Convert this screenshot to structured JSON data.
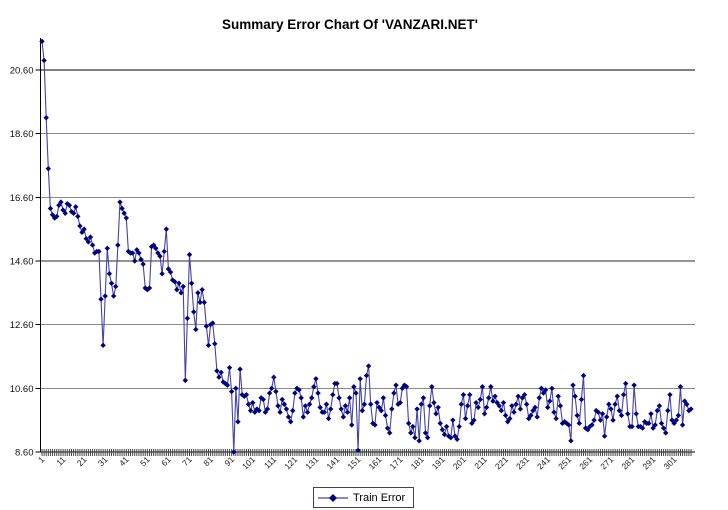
{
  "chart": {
    "title": "Summary Error Chart Of 'VANZARI.NET'",
    "legend": {
      "train_error": "Train Error"
    }
  },
  "chart_data": {
    "type": "line",
    "title": "Summary Error Chart Of 'VANZARI.NET'",
    "xlabel": "",
    "ylabel": "",
    "x_start": 1,
    "x_tick_interval": 10,
    "x_tick_labels": [
      "1",
      "11",
      "21",
      "31",
      "41",
      "51",
      "61",
      "71",
      "81",
      "91",
      "101",
      "111",
      "121",
      "131",
      "141",
      "151",
      "161",
      "171",
      "181",
      "191",
      "201",
      "211",
      "221",
      "231",
      "241",
      "251",
      "261",
      "271",
      "281",
      "291",
      "301"
    ],
    "x_tick_rotation_deg": 45,
    "y_ticks": [
      {
        "label": "8.60",
        "value": 8.6,
        "line_color": "#000000"
      },
      {
        "label": "10.60",
        "value": 10.6,
        "line_color": "#8a8a8a"
      },
      {
        "label": "12.60",
        "value": 12.6,
        "line_color": "#8a8a8a"
      },
      {
        "label": "14.60",
        "value": 14.6,
        "line_color": "#2b2b2b"
      },
      {
        "label": "16.60",
        "value": 16.6,
        "line_color": "#8a8a8a"
      },
      {
        "label": "18.60",
        "value": 18.6,
        "line_color": "#8a8a8a"
      },
      {
        "label": "20.60",
        "value": 20.6,
        "line_color": "#000000"
      }
    ],
    "ylim": [
      8.6,
      21.55
    ],
    "grid": true,
    "legend_position": "bottom-center",
    "background": "#ffffff",
    "axis_color": "#000000",
    "tick_color": "#444444",
    "series": [
      {
        "name": "Train Error",
        "marker": "diamond",
        "marker_color": "#000080",
        "line_color": "#4343a8",
        "values": [
          21.5,
          20.9,
          19.1,
          17.5,
          16.25,
          16.05,
          15.95,
          16.0,
          16.35,
          16.45,
          16.2,
          16.1,
          16.4,
          16.35,
          16.15,
          16.1,
          16.3,
          16.0,
          15.7,
          15.5,
          15.6,
          15.3,
          15.2,
          15.35,
          15.1,
          14.85,
          14.9,
          14.9,
          13.4,
          11.95,
          13.5,
          15.0,
          14.2,
          13.9,
          13.5,
          13.8,
          15.1,
          16.45,
          16.25,
          16.1,
          15.95,
          14.9,
          14.85,
          14.85,
          14.6,
          14.95,
          14.85,
          14.65,
          14.5,
          13.75,
          13.7,
          13.75,
          15.05,
          15.1,
          15.0,
          14.85,
          14.75,
          14.2,
          14.9,
          15.6,
          14.35,
          14.25,
          14.0,
          13.95,
          13.7,
          13.9,
          13.6,
          13.8,
          10.85,
          12.8,
          14.8,
          13.9,
          13.0,
          12.45,
          13.6,
          13.3,
          13.7,
          13.3,
          12.55,
          11.95,
          12.6,
          12.65,
          12.0,
          11.15,
          10.95,
          11.1,
          10.8,
          10.75,
          10.7,
          11.25,
          10.5,
          8.6,
          10.6,
          9.55,
          11.2,
          10.4,
          10.35,
          10.4,
          10.1,
          9.9,
          10.15,
          9.85,
          9.95,
          9.9,
          10.3,
          10.25,
          9.85,
          9.95,
          10.45,
          10.6,
          10.95,
          10.5,
          10.05,
          9.85,
          10.25,
          10.1,
          9.95,
          9.7,
          9.55,
          9.9,
          10.45,
          10.6,
          10.55,
          10.3,
          9.7,
          10.05,
          9.85,
          10.1,
          10.3,
          10.65,
          10.9,
          10.45,
          10.0,
          9.85,
          9.85,
          10.1,
          9.65,
          9.95,
          10.4,
          10.75,
          10.75,
          10.3,
          9.95,
          9.7,
          10.05,
          9.85,
          10.3,
          9.45,
          10.65,
          10.45,
          8.65,
          10.9,
          9.9,
          10.1,
          11.0,
          11.3,
          10.1,
          9.5,
          9.45,
          10.15,
          10.0,
          9.9,
          10.3,
          9.75,
          9.35,
          9.2,
          9.95,
          10.45,
          10.7,
          10.1,
          10.15,
          10.6,
          10.7,
          10.65,
          9.5,
          9.2,
          9.4,
          9.05,
          9.95,
          8.95,
          10.1,
          10.3,
          9.2,
          9.05,
          10.05,
          10.65,
          10.15,
          9.8,
          10.0,
          9.5,
          9.3,
          9.15,
          9.4,
          9.1,
          9.05,
          9.6,
          9.1,
          9.0,
          9.4,
          10.1,
          10.4,
          9.65,
          10.05,
          10.4,
          9.5,
          9.6,
          10.15,
          10.0,
          10.25,
          10.65,
          9.8,
          10.0,
          10.3,
          10.65,
          10.2,
          10.35,
          10.15,
          10.05,
          9.9,
          10.15,
          9.75,
          9.55,
          9.65,
          10.05,
          9.85,
          10.1,
          10.35,
          9.95,
          10.3,
          10.4,
          10.1,
          9.65,
          9.75,
          9.9,
          10.0,
          9.7,
          10.3,
          10.6,
          10.45,
          10.55,
          10.0,
          10.2,
          10.6,
          9.85,
          9.65,
          10.35,
          10.05,
          9.5,
          9.55,
          9.5,
          9.45,
          8.95,
          10.7,
          10.35,
          9.75,
          9.5,
          10.25,
          11.0,
          9.35,
          9.3,
          9.4,
          9.45,
          9.6,
          9.9,
          9.85,
          9.6,
          9.8,
          9.1,
          9.7,
          10.1,
          9.95,
          9.6,
          10.1,
          10.35,
          9.9,
          9.75,
          10.4,
          10.75,
          9.8,
          9.4,
          9.4,
          10.7,
          9.8,
          9.4,
          9.4,
          9.35,
          9.55,
          9.5,
          9.5,
          9.8,
          9.35,
          9.45,
          9.9,
          10.05,
          9.5,
          9.35,
          9.2,
          9.9,
          10.4,
          9.6,
          9.5,
          9.6,
          9.75,
          10.65,
          9.45,
          10.2,
          10.1,
          9.9,
          9.95
        ]
      }
    ]
  }
}
